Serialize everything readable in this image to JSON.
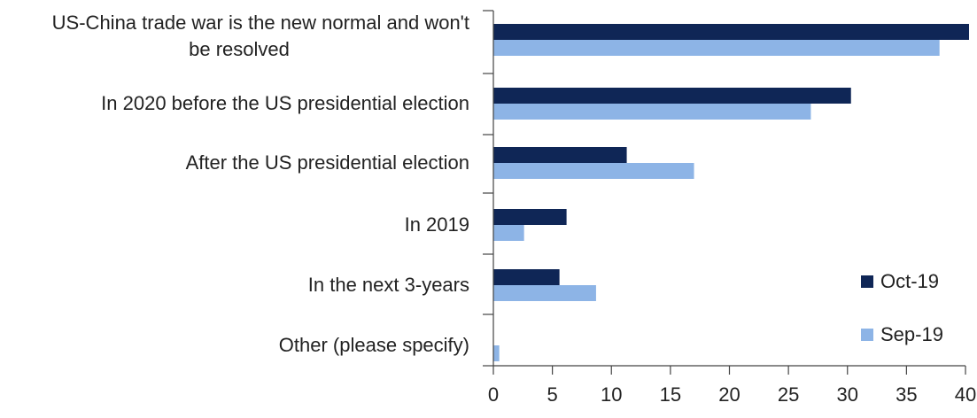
{
  "chart_data": {
    "type": "bar",
    "orientation": "horizontal",
    "categories": [
      [
        "US-China trade war is the new normal and won't",
        "be resolved"
      ],
      [
        "In 2020 before the US presidential election"
      ],
      [
        "After the US presidential election"
      ],
      [
        "In 2019"
      ],
      [
        "In the next 3-years"
      ],
      [
        "Other (please specify)"
      ]
    ],
    "series": [
      {
        "name": "Oct-19",
        "color": "#0f2656",
        "values": [
          40.3,
          30.3,
          11.3,
          6.2,
          5.6,
          0.0
        ]
      },
      {
        "name": "Sep-19",
        "color": "#8db4e6",
        "values": [
          37.8,
          26.9,
          17.0,
          2.6,
          8.7,
          0.5
        ]
      }
    ],
    "xlim": [
      0,
      40
    ],
    "xticks": [
      0,
      5,
      10,
      15,
      20,
      25,
      30,
      35,
      40
    ],
    "grid": false,
    "legend_position": "bottom-right"
  }
}
